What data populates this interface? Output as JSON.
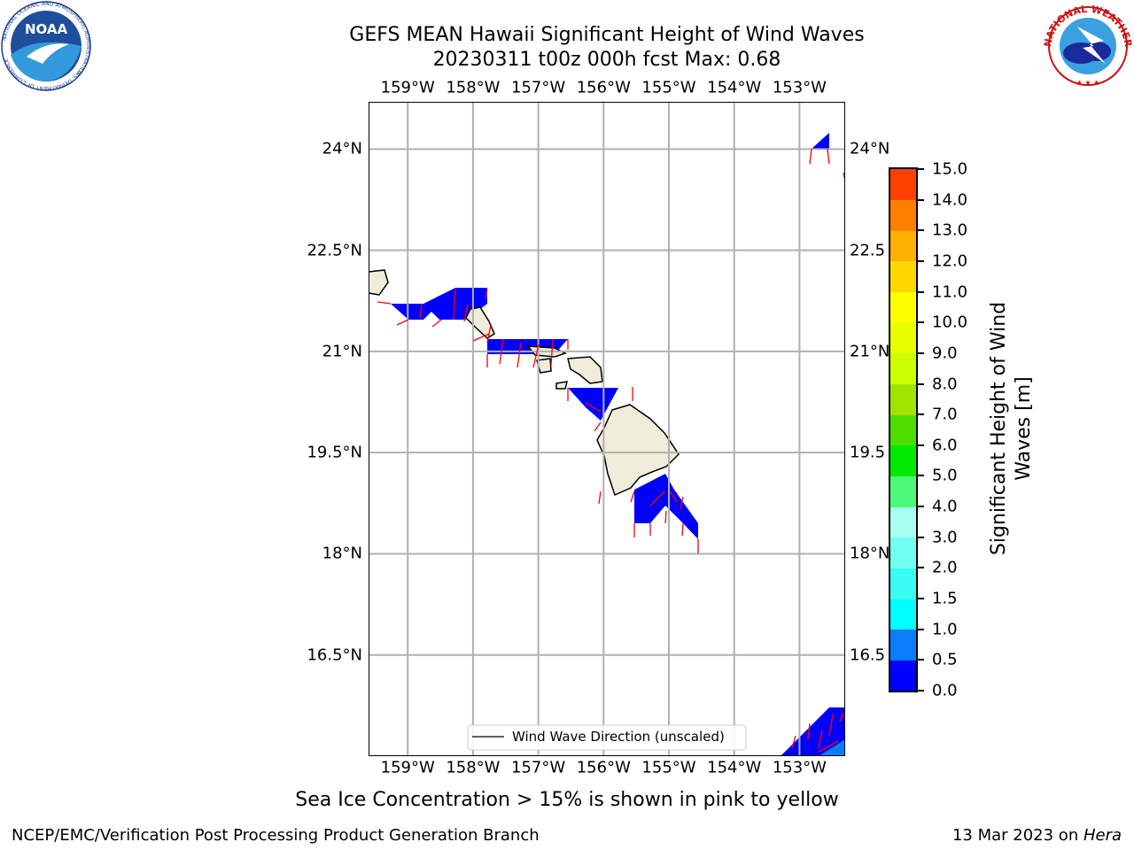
{
  "title_line1": "GEFS MEAN Hawaii Significant Height of Wind Waves",
  "title_line2": "20230311 t00z 000h fcst   Max: 0.68",
  "map": {
    "lon_ticks": [
      "159°W",
      "158°W",
      "157°W",
      "156°W",
      "155°W",
      "154°W",
      "153°W"
    ],
    "lon_values": [
      -159,
      -158,
      -157,
      -156,
      -155,
      -154,
      -153
    ],
    "lat_ticks_left": [
      "24°N",
      "22.5°N",
      "21°N",
      "19.5°N",
      "18°N",
      "16.5°N"
    ],
    "lat_ticks_right": [
      "24°N",
      "22.5",
      "21°N",
      "19.5",
      "18°N",
      "16.5"
    ],
    "lat_values": [
      24,
      22.5,
      21,
      19.5,
      18,
      16.5
    ],
    "lon_range": [
      -159.6,
      -152.3
    ],
    "lat_range": [
      15.0,
      24.7
    ],
    "legend_label": "Wind Wave Direction (unscaled)",
    "land_color": "#efedd9",
    "ocean_fill_color": "#0000ff",
    "arrow_color": "#ff0000"
  },
  "colorbar": {
    "label": "Significant Height of Wind Waves [m]",
    "label_line1": "Significant Height of Wind",
    "label_line2": "Waves [m]",
    "ticks": [
      "0.0",
      "0.5",
      "1.0",
      "1.5",
      "2.0",
      "3.0",
      "4.0",
      "5.0",
      "6.0",
      "7.0",
      "8.0",
      "9.0",
      "10.0",
      "11.0",
      "12.0",
      "13.0",
      "14.0",
      "15.0"
    ],
    "colors": [
      "#0000ff",
      "#0a7dfa",
      "#00ffff",
      "#38fcf0",
      "#70fff0",
      "#a8fff0",
      "#4cf878",
      "#00ea00",
      "#4dde00",
      "#a0e400",
      "#ccff00",
      "#e8ff00",
      "#ffff00",
      "#ffd700",
      "#ffb000",
      "#ff8000",
      "#ff4000",
      "#ff0000"
    ]
  },
  "sea_ice_note": "Sea Ice Concentration > 15% is shown in pink to yellow",
  "footer_left": "NCEP/EMC/Verification Post Processing Product Generation Branch",
  "footer_date": "13 Mar 2023 on ",
  "footer_machine": "Hera",
  "logo_left": {
    "name": "NOAA",
    "ring_text": "NATIONAL OCEANIC AND ATMOSPHERIC ADMINISTRATION",
    "ring_text_bottom": "U.S. DEPARTMENT OF COMMERCE"
  },
  "logo_right": {
    "ring_text": "NATIONAL WEATHER SERVICE"
  }
}
